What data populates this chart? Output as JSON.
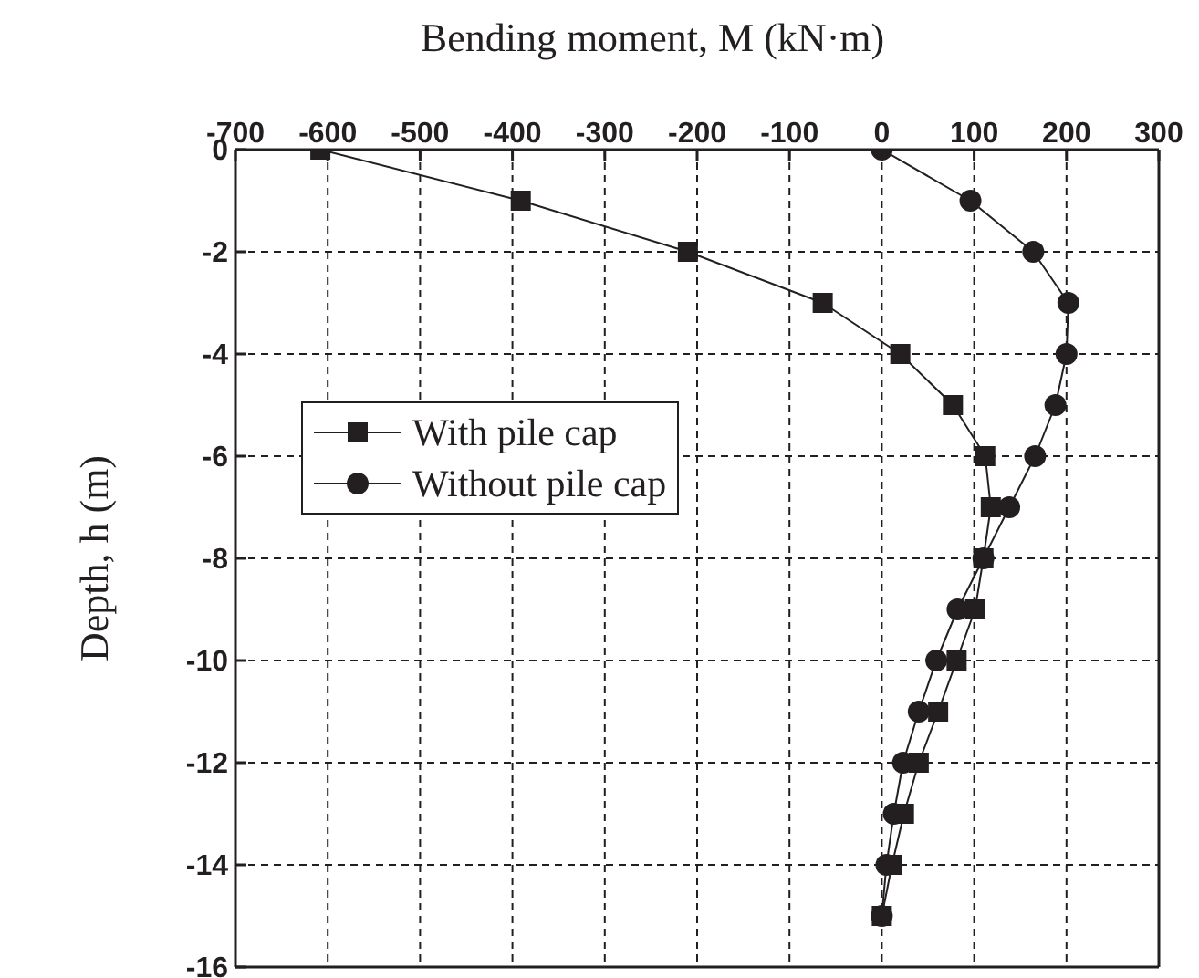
{
  "chart_data": {
    "type": "line",
    "xlabel": "Bending moment, M (kN·m)",
    "ylabel": "Depth, h (m)",
    "xlim": [
      -700,
      300
    ],
    "xticks": [
      -700,
      -600,
      -500,
      -400,
      -300,
      -200,
      -100,
      0,
      100,
      200,
      300
    ],
    "ylim": [
      -16,
      0
    ],
    "yticks": [
      0,
      -2,
      -4,
      -6,
      -8,
      -10,
      -12,
      -14,
      -16
    ],
    "grid": true,
    "legend": "left",
    "line_style": "solid",
    "series": [
      {
        "name": "With pile cap",
        "color": "#231f20",
        "marker": "square",
        "x": [
          -608,
          -391,
          -210,
          -64,
          20,
          77,
          112,
          118,
          110,
          101,
          81,
          61,
          40,
          24,
          11,
          0
        ],
        "values": [
          0,
          -1,
          -2,
          -3,
          -4,
          -5,
          -6,
          -7,
          -8,
          -9,
          -10,
          -11,
          -12,
          -13,
          -14,
          -15
        ]
      },
      {
        "name": "Without pile cap",
        "color": "#231f20",
        "marker": "circle",
        "x": [
          0,
          96,
          164,
          202,
          200,
          188,
          166,
          138,
          110,
          82,
          59,
          40,
          23,
          13,
          5,
          0
        ],
        "values": [
          0,
          -1,
          -2,
          -3,
          -4,
          -5,
          -6,
          -7,
          -8,
          -9,
          -10,
          -11,
          -12,
          -13,
          -14,
          -15
        ]
      }
    ]
  }
}
